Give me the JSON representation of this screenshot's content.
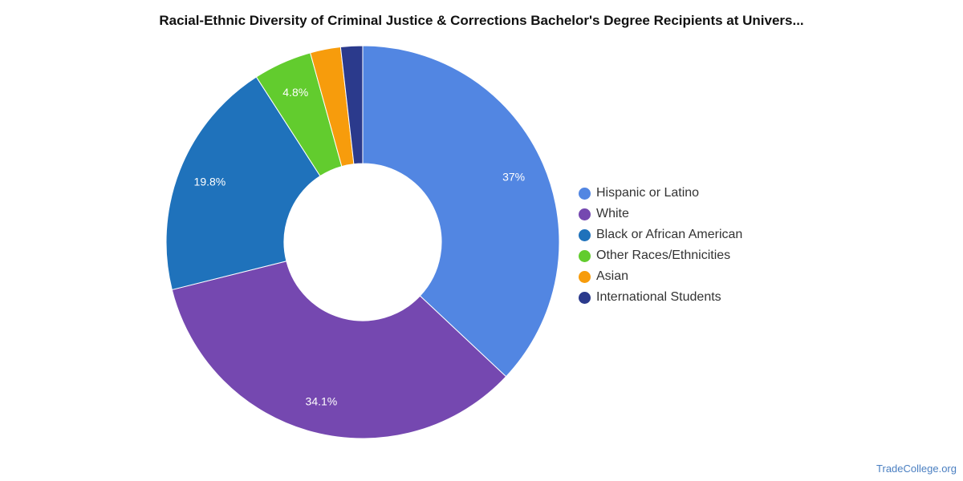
{
  "chart_data": {
    "type": "pie",
    "title": "Racial-Ethnic Diversity of Criminal Justice & Corrections Bachelor's Degree Recipients at Univers...",
    "categories": [
      "Hispanic or Latino",
      "White",
      "Black or African American",
      "Other Races/Ethnicities",
      "Asian",
      "International Students"
    ],
    "values": [
      37.0,
      34.1,
      19.8,
      4.8,
      2.5,
      1.8
    ],
    "value_labels": [
      "37%",
      "34.1%",
      "19.8%",
      "4.8%",
      "",
      ""
    ],
    "colors": [
      "#5286e2",
      "#7548b0",
      "#1f72bb",
      "#62cc2e",
      "#f79c0c",
      "#2b3a8c"
    ],
    "donut": true,
    "legend": "right"
  },
  "source": "TradeCollege.org"
}
